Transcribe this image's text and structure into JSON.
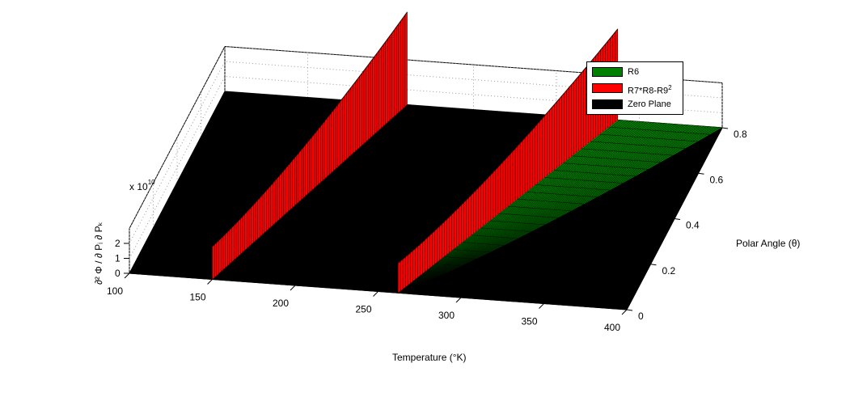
{
  "chart_data": {
    "type": "surface3d",
    "xlabel": "Temperature (°K)",
    "ylabel": "Polar Angle (θ)",
    "zlabel": "∂² Φ / ∂ Pᵢ ∂ Pₖ",
    "z_exponent_label": "x 10",
    "z_exponent_power": "10",
    "xlim": [
      100,
      400
    ],
    "ylim": [
      0,
      0.8
    ],
    "zlim": [
      0,
      3
    ],
    "xticks": [
      "100",
      "150",
      "200",
      "250",
      "300",
      "350",
      "400"
    ],
    "yticks": [
      "0",
      "0.2",
      "0.4",
      "0.6",
      "0.8"
    ],
    "zticks": [
      "0",
      "1",
      "2"
    ],
    "grid": true,
    "legend_position": "top-right",
    "series": [
      {
        "name": "R6",
        "color": "#008000",
        "description_values": {
          "boundary_T_at_theta_0": 260,
          "boundary_T_at_theta_0_8": 400
        }
      },
      {
        "name": "R7*R8-R9",
        "name_superscript": "2",
        "color": "#ff0000",
        "spikes": [
          {
            "T_at_theta_0": 150,
            "T_at_theta_0_8": 210,
            "height_at_theta_0": 2.2,
            "height_at_theta_0_8": 6.2
          },
          {
            "T_at_theta_0": 262,
            "T_at_theta_0_8": 337,
            "height_at_theta_0": 2.0,
            "height_at_theta_0_8": 6.1
          }
        ]
      },
      {
        "name": "Zero Plane",
        "color": "#000000",
        "value": 0
      }
    ]
  }
}
